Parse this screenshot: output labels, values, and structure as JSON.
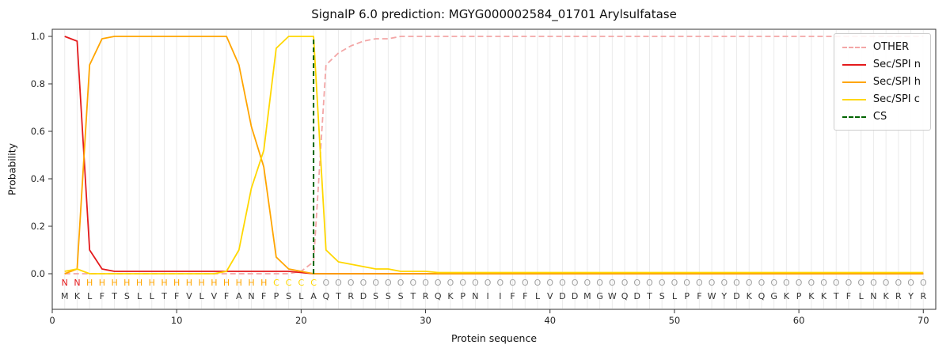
{
  "title": "SignalP 6.0 prediction: MGYG000002584_01701 Arylsulfatase",
  "axes": {
    "xlabel": "Protein sequence",
    "ylabel": "Probability"
  },
  "legend": {
    "items": [
      {
        "label": "OTHER",
        "color": "#f3a6a6",
        "dashed": true
      },
      {
        "label": "Sec/SPI n",
        "color": "#e41a1c",
        "dashed": false
      },
      {
        "label": "Sec/SPI h",
        "color": "#ffa500",
        "dashed": false
      },
      {
        "label": "Sec/SPI c",
        "color": "#ffd700",
        "dashed": false
      },
      {
        "label": "CS",
        "color": "#006400",
        "dashed": true
      }
    ]
  },
  "chart_data": {
    "type": "line",
    "title": "SignalP 6.0 prediction: MGYG000002584_01701 Arylsulfatase",
    "xlabel": "Protein sequence",
    "ylabel": "Probability",
    "xlim": [
      0,
      71
    ],
    "ylim": [
      -0.15,
      1.03
    ],
    "x_ticks": [
      0,
      10,
      20,
      30,
      40,
      50,
      60,
      70
    ],
    "y_ticks": [
      0.0,
      0.2,
      0.4,
      0.6,
      0.8,
      1.0
    ],
    "grid": "vertical-per-residue",
    "legend_position": "upper right",
    "sequence": "MKLFTSLLTFVLVFANFPSLAQTRDSSSTRQKPNIIFFLVDDMGWQDTSLPFWYDKQGKPKKTFLNKRYR",
    "region_labels": "NNHHHHHHHHHHHHHHHCCCCOOOOOOOOOOOOOOOOOOOOOOOOOOOOOOOOOOOOOOOOOOOOOOOO",
    "region_colors": {
      "N": "#e41a1c",
      "H": "#ffa500",
      "C": "#ffd700",
      "O": "#a3a3a3"
    },
    "sequence_color": "#333333",
    "series": [
      {
        "name": "OTHER",
        "color": "#f3a6a6",
        "dashed": true,
        "values": [
          0,
          0,
          0,
          0,
          0,
          0,
          0,
          0,
          0,
          0,
          0,
          0,
          0,
          0,
          0,
          0,
          0,
          0,
          0,
          0.01,
          0.05,
          0.88,
          0.93,
          0.96,
          0.98,
          0.99,
          0.99,
          1,
          1,
          1,
          1,
          1,
          1,
          1,
          1,
          1,
          1,
          1,
          1,
          1,
          1,
          1,
          1,
          1,
          1,
          1,
          1,
          1,
          1,
          1,
          1,
          1,
          1,
          1,
          1,
          1,
          1,
          1,
          1,
          1,
          1,
          1,
          1,
          1,
          1,
          1,
          1,
          1,
          1,
          1
        ]
      },
      {
        "name": "Sec/SPI n",
        "color": "#e41a1c",
        "dashed": false,
        "values": [
          1,
          0.98,
          0.1,
          0.02,
          0.01,
          0.01,
          0.01,
          0.01,
          0.01,
          0.01,
          0.01,
          0.01,
          0.01,
          0.01,
          0.01,
          0.01,
          0.01,
          0.01,
          0.01,
          0.005,
          0,
          0,
          0,
          0,
          0,
          0,
          0,
          0,
          0,
          0,
          0,
          0,
          0,
          0,
          0,
          0,
          0,
          0,
          0,
          0,
          0,
          0,
          0,
          0,
          0,
          0,
          0,
          0,
          0,
          0,
          0,
          0,
          0,
          0,
          0,
          0,
          0,
          0,
          0,
          0,
          0,
          0,
          0,
          0,
          0,
          0,
          0,
          0,
          0,
          0
        ]
      },
      {
        "name": "Sec/SPI h",
        "color": "#ffa500",
        "dashed": false,
        "values": [
          0,
          0.02,
          0.88,
          0.99,
          1,
          1,
          1,
          1,
          1,
          1,
          1,
          1,
          1,
          1,
          0.88,
          0.62,
          0.45,
          0.07,
          0.02,
          0.01,
          0,
          0,
          0,
          0,
          0,
          0,
          0,
          0,
          0,
          0,
          0,
          0,
          0,
          0,
          0,
          0,
          0,
          0,
          0,
          0,
          0,
          0,
          0,
          0,
          0,
          0,
          0,
          0,
          0,
          0,
          0,
          0,
          0,
          0,
          0,
          0,
          0,
          0,
          0,
          0,
          0,
          0,
          0,
          0,
          0,
          0,
          0,
          0,
          0,
          0
        ]
      },
      {
        "name": "Sec/SPI c",
        "color": "#ffd700",
        "dashed": false,
        "values": [
          0.01,
          0.02,
          0,
          0,
          0,
          0,
          0,
          0,
          0,
          0,
          0,
          0,
          0,
          0.01,
          0.1,
          0.36,
          0.52,
          0.95,
          1,
          1,
          1,
          0.1,
          0.05,
          0.04,
          0.03,
          0.02,
          0.02,
          0.01,
          0.01,
          0.01,
          0.005,
          0.005,
          0.005,
          0.005,
          0.005,
          0.005,
          0.005,
          0.005,
          0.005,
          0.005,
          0.005,
          0.005,
          0.005,
          0.005,
          0.005,
          0.005,
          0.005,
          0.005,
          0.005,
          0.005,
          0.005,
          0.005,
          0.005,
          0.005,
          0.005,
          0.005,
          0.005,
          0.005,
          0.005,
          0.005,
          0.005,
          0.005,
          0.005,
          0.005,
          0.005,
          0.005,
          0.005,
          0.005,
          0.005,
          0.005
        ]
      }
    ],
    "cs_line": {
      "x": 21,
      "color": "#006400",
      "dashed": true
    }
  }
}
